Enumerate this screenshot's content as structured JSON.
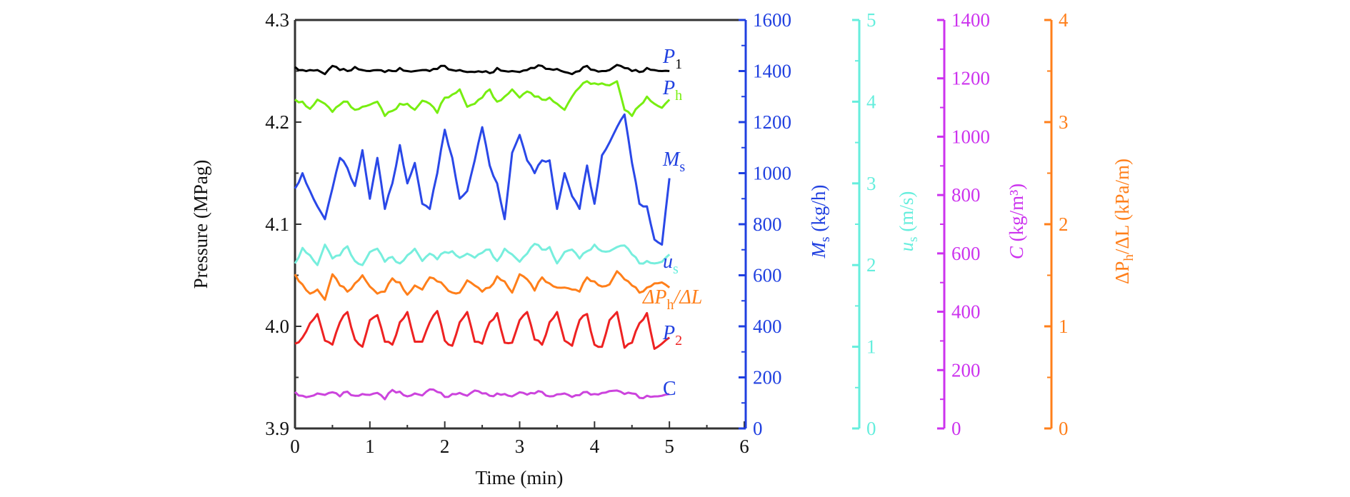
{
  "chart_data": {
    "type": "line",
    "title": "",
    "xlabel": "Time (min)",
    "xlim": [
      0,
      6
    ],
    "xticks": [
      "0",
      "1",
      "2",
      "3",
      "4",
      "5",
      "6"
    ],
    "x_minor_step": 0.5,
    "grid": false,
    "legend": "inline-right-labels",
    "axes": [
      {
        "id": "pressure",
        "side": "left",
        "label": "Pressure (MPag)",
        "range": [
          3.9,
          4.3
        ],
        "ticks": [
          "3.9",
          "4.0",
          "4.1",
          "4.2",
          "4.3"
        ],
        "minor_step": 0.05,
        "color": "#000000"
      },
      {
        "id": "Ms",
        "side": "right-1",
        "label_main": "M",
        "label_sub": "s",
        "label_unit": " (kg/h)",
        "range": [
          0,
          1600
        ],
        "ticks": [
          "0",
          "200",
          "400",
          "600",
          "800",
          "1000",
          "1200",
          "1400",
          "1600"
        ],
        "minor_step": 100,
        "color": "#2040e0"
      },
      {
        "id": "us",
        "side": "right-2",
        "label_main": "u",
        "label_sub": "s",
        "label_unit": " (m/s)",
        "range": [
          0,
          5
        ],
        "ticks": [
          "0",
          "1",
          "2",
          "3",
          "4",
          "5"
        ],
        "minor_step": 0.5,
        "color": "#66eedd"
      },
      {
        "id": "C",
        "side": "right-3",
        "label_main": "C",
        "label_sub": "",
        "label_unit": " (kg/m³)",
        "range": [
          0,
          1400
        ],
        "ticks": [
          "0",
          "200",
          "400",
          "600",
          "800",
          "1000",
          "1200",
          "1400"
        ],
        "minor_step": 100,
        "color": "#cc33ee"
      },
      {
        "id": "dPh",
        "side": "right-4",
        "label_main": "ΔP",
        "label_sub": "h",
        "label_unit": "/ΔL (kPa/m)",
        "range": [
          0,
          4
        ],
        "ticks": [
          "0",
          "1",
          "2",
          "3",
          "4"
        ],
        "minor_step": 0.5,
        "color": "#ff7f1a"
      }
    ],
    "x": [
      0.0,
      0.1,
      0.2,
      0.3,
      0.4,
      0.5,
      0.6,
      0.7,
      0.8,
      0.9,
      1.0,
      1.1,
      1.2,
      1.3,
      1.4,
      1.5,
      1.6,
      1.7,
      1.8,
      1.9,
      2.0,
      2.1,
      2.2,
      2.3,
      2.4,
      2.5,
      2.6,
      2.7,
      2.8,
      2.9,
      3.0,
      3.1,
      3.2,
      3.3,
      3.4,
      3.5,
      3.6,
      3.7,
      3.8,
      3.9,
      4.0,
      4.1,
      4.2,
      4.3,
      4.4,
      4.5,
      4.6,
      4.7,
      4.8,
      4.9,
      5.0
    ],
    "series": [
      {
        "name": "P1",
        "label_main": "P",
        "label_sub": "1",
        "label_color": "#2040e0",
        "sub_color": "#000000",
        "color": "#000000",
        "axis": "pressure",
        "unit_note": "plotted on pressure axis",
        "values": [
          4.254,
          4.251,
          4.251,
          4.251,
          4.247,
          4.255,
          4.251,
          4.25,
          4.254,
          4.251,
          4.25,
          4.251,
          4.249,
          4.25,
          4.253,
          4.25,
          4.25,
          4.251,
          4.25,
          4.252,
          4.255,
          4.251,
          4.251,
          4.249,
          4.249,
          4.249,
          4.248,
          4.253,
          4.25,
          4.25,
          4.249,
          4.251,
          4.253,
          4.255,
          4.252,
          4.252,
          4.249,
          4.247,
          4.25,
          4.255,
          4.251,
          4.25,
          4.251,
          4.256,
          4.253,
          4.25,
          4.249,
          4.253,
          4.251,
          4.25,
          4.25
        ]
      },
      {
        "name": "Ph",
        "label_main": "P",
        "label_sub": "h",
        "label_color": "#2040e0",
        "sub_color": "#77ee11",
        "color": "#77ee11",
        "axis": "pressure",
        "values": [
          4.222,
          4.22,
          4.213,
          4.222,
          4.218,
          4.21,
          4.217,
          4.22,
          4.212,
          4.215,
          4.217,
          4.22,
          4.206,
          4.211,
          4.218,
          4.218,
          4.212,
          4.221,
          4.218,
          4.209,
          4.224,
          4.227,
          4.232,
          4.215,
          4.218,
          4.224,
          4.232,
          4.22,
          4.225,
          4.232,
          4.224,
          4.23,
          4.225,
          4.222,
          4.224,
          4.218,
          4.212,
          4.225,
          4.234,
          4.24,
          4.238,
          4.238,
          4.236,
          4.24,
          4.212,
          4.206,
          4.216,
          4.225,
          4.218,
          4.214,
          4.222
        ]
      },
      {
        "name": "Ms",
        "label_main": "M",
        "label_sub": "s",
        "label_color": "#2040e0",
        "sub_color": "#2040e0",
        "color": "#2a48e8",
        "axis": "Ms",
        "unit_note": "values in kg/h",
        "values": [
          940,
          1000,
          930,
          870,
          820,
          940,
          1060,
          1020,
          950,
          1090,
          900,
          1060,
          860,
          960,
          1110,
          960,
          1040,
          880,
          860,
          1000,
          1170,
          1060,
          900,
          930,
          1050,
          1180,
          1030,
          960,
          820,
          1080,
          1150,
          1050,
          1000,
          1050,
          1050,
          860,
          1000,
          910,
          860,
          1030,
          880,
          1070,
          1120,
          1180,
          1230,
          1040,
          880,
          870,
          740,
          720,
          980
        ]
      },
      {
        "name": "us",
        "label_main": "u",
        "label_sub": "s",
        "label_color": "#2040e0",
        "sub_color": "#66eedd",
        "color": "#77eedd",
        "axis": "us",
        "unit_note": "values in m/s",
        "values": [
          2.02,
          2.21,
          2.12,
          2.0,
          2.25,
          2.08,
          2.12,
          2.23,
          2.05,
          2.0,
          2.16,
          2.2,
          2.04,
          2.1,
          2.02,
          2.12,
          2.2,
          2.05,
          2.14,
          2.07,
          2.16,
          2.17,
          2.09,
          2.14,
          2.09,
          2.15,
          2.19,
          2.05,
          2.2,
          2.13,
          2.04,
          2.14,
          2.26,
          2.19,
          2.22,
          2.02,
          2.16,
          2.19,
          2.08,
          2.17,
          2.25,
          2.17,
          2.17,
          2.22,
          2.24,
          2.13,
          2.02,
          2.05,
          2.02,
          2.04,
          2.13
        ]
      },
      {
        "name": "dPh/dL",
        "label_main": "ΔP",
        "label_sub": "h",
        "label_suffix": "/ΔL",
        "label_color": "#ff7f1a",
        "sub_color": "#ff7f1a",
        "color": "#ff7f1a",
        "axis": "dPh",
        "unit_note": "values in kPa/m",
        "values": [
          1.51,
          1.41,
          1.32,
          1.36,
          1.26,
          1.51,
          1.4,
          1.34,
          1.42,
          1.5,
          1.39,
          1.32,
          1.34,
          1.47,
          1.43,
          1.31,
          1.4,
          1.36,
          1.48,
          1.44,
          1.39,
          1.33,
          1.33,
          1.45,
          1.4,
          1.34,
          1.38,
          1.49,
          1.44,
          1.33,
          1.51,
          1.46,
          1.35,
          1.48,
          1.42,
          1.38,
          1.38,
          1.36,
          1.34,
          1.48,
          1.44,
          1.39,
          1.41,
          1.54,
          1.46,
          1.4,
          1.33,
          1.38,
          1.42,
          1.43,
          1.38
        ]
      },
      {
        "name": "P2",
        "label_main": "P",
        "label_sub": "2",
        "label_color": "#2040e0",
        "sub_color": "#ee2222",
        "color": "#ee2222",
        "axis": "pressure",
        "values": [
          3.983,
          3.989,
          4.003,
          4.012,
          3.986,
          3.982,
          4.004,
          4.014,
          3.987,
          3.98,
          4.006,
          4.011,
          3.985,
          3.982,
          4.004,
          4.014,
          3.985,
          3.985,
          4.004,
          4.015,
          3.986,
          3.981,
          4.004,
          4.014,
          3.985,
          3.983,
          4.004,
          4.013,
          3.984,
          3.984,
          4.006,
          4.014,
          3.987,
          3.982,
          4.004,
          4.014,
          3.986,
          3.981,
          4.006,
          4.012,
          3.982,
          3.98,
          4.006,
          4.014,
          3.979,
          3.984,
          4.003,
          4.013,
          3.978,
          3.983,
          3.989
        ]
      },
      {
        "name": "C",
        "label_main": "C",
        "label_sub": "",
        "label_color": "#2040e0",
        "sub_color": "#2040e0",
        "color": "#cc44dd",
        "axis": "C",
        "unit_note": "values in kg/m3",
        "values": [
          125,
          112,
          110,
          120,
          115,
          124,
          110,
          126,
          112,
          118,
          115,
          122,
          100,
          132,
          126,
          110,
          120,
          113,
          134,
          125,
          108,
          118,
          122,
          112,
          130,
          120,
          112,
          120,
          118,
          110,
          124,
          116,
          120,
          125,
          110,
          117,
          120,
          108,
          114,
          125,
          118,
          122,
          128,
          130,
          118,
          120,
          105,
          112,
          110,
          112,
          118
        ]
      }
    ]
  }
}
